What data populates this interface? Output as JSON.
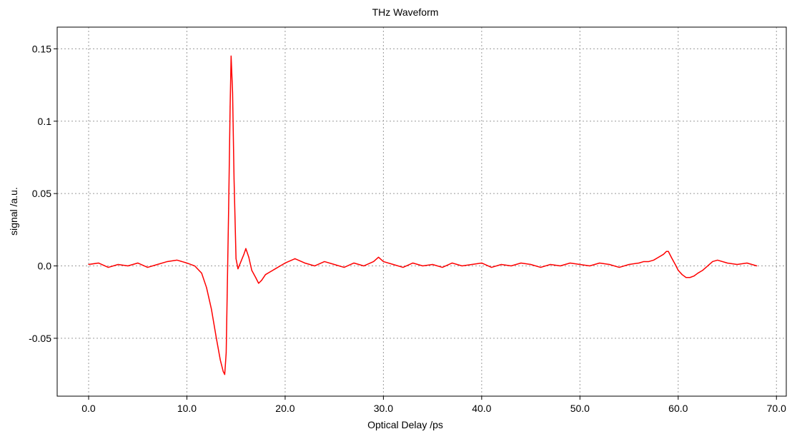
{
  "chart_data": {
    "type": "line",
    "title": "THz Waveform",
    "xlabel": "Optical Delay /ps",
    "ylabel": "signal /a.u.",
    "xlim": [
      -3.2,
      71.0
    ],
    "ylim": [
      -0.09,
      0.165
    ],
    "x_ticks": [
      0.0,
      10.0,
      20.0,
      30.0,
      40.0,
      50.0,
      60.0,
      70.0
    ],
    "x_tick_labels": [
      "0.0",
      "10.0",
      "20.0",
      "30.0",
      "40.0",
      "50.0",
      "60.0",
      "70.0"
    ],
    "y_ticks": [
      -0.05,
      0.0,
      0.05,
      0.1,
      0.15
    ],
    "y_tick_labels": [
      "-0.05",
      "0.0",
      "0.05",
      "0.1",
      "0.15"
    ],
    "grid": true,
    "legend": "none",
    "series": [
      {
        "color": "#ff0000",
        "x": [
          0.0,
          1.0,
          2.0,
          3.0,
          4.0,
          5.0,
          6.0,
          7.0,
          8.0,
          9.0,
          10.0,
          10.8,
          11.5,
          12.0,
          12.5,
          13.0,
          13.4,
          13.7,
          13.85,
          14.0,
          14.1,
          14.25,
          14.4,
          14.5,
          14.65,
          14.8,
          15.0,
          15.2,
          15.5,
          15.8,
          16.0,
          16.3,
          16.6,
          17.0,
          17.3,
          17.6,
          18.0,
          18.5,
          19.0,
          19.5,
          20.0,
          21.0,
          22.0,
          23.0,
          24.0,
          25.0,
          26.0,
          27.0,
          28.0,
          29.0,
          29.5,
          30.0,
          31.0,
          32.0,
          33.0,
          34.0,
          35.0,
          36.0,
          37.0,
          38.0,
          39.0,
          40.0,
          41.0,
          42.0,
          43.0,
          44.0,
          45.0,
          46.0,
          47.0,
          48.0,
          49.0,
          50.0,
          51.0,
          52.0,
          53.0,
          54.0,
          55.0,
          56.0,
          56.5,
          57.0,
          57.5,
          58.0,
          58.5,
          58.8,
          59.0,
          59.3,
          59.7,
          60.0,
          60.4,
          60.8,
          61.2,
          61.6,
          62.0,
          62.5,
          63.0,
          63.5,
          64.0,
          65.0,
          66.0,
          67.0,
          68.0
        ],
        "y": [
          0.001,
          0.002,
          -0.001,
          0.001,
          0.0,
          0.002,
          -0.001,
          0.001,
          0.003,
          0.004,
          0.002,
          0.0,
          -0.005,
          -0.015,
          -0.03,
          -0.05,
          -0.065,
          -0.073,
          -0.075,
          -0.06,
          -0.02,
          0.04,
          0.11,
          0.145,
          0.12,
          0.06,
          0.005,
          -0.002,
          0.003,
          0.008,
          0.012,
          0.006,
          -0.003,
          -0.008,
          -0.012,
          -0.01,
          -0.006,
          -0.004,
          -0.002,
          0.0,
          0.002,
          0.005,
          0.002,
          0.0,
          0.003,
          0.001,
          -0.001,
          0.002,
          0.0,
          0.003,
          0.006,
          0.003,
          0.001,
          -0.001,
          0.002,
          0.0,
          0.001,
          -0.001,
          0.002,
          0.0,
          0.001,
          0.002,
          -0.001,
          0.001,
          0.0,
          0.002,
          0.001,
          -0.001,
          0.001,
          0.0,
          0.002,
          0.001,
          0.0,
          0.002,
          0.001,
          -0.001,
          0.001,
          0.002,
          0.003,
          0.003,
          0.004,
          0.006,
          0.008,
          0.01,
          0.01,
          0.006,
          0.001,
          -0.003,
          -0.006,
          -0.008,
          -0.008,
          -0.007,
          -0.005,
          -0.003,
          0.0,
          0.003,
          0.004,
          0.002,
          0.001,
          0.002,
          0.0
        ]
      }
    ]
  }
}
